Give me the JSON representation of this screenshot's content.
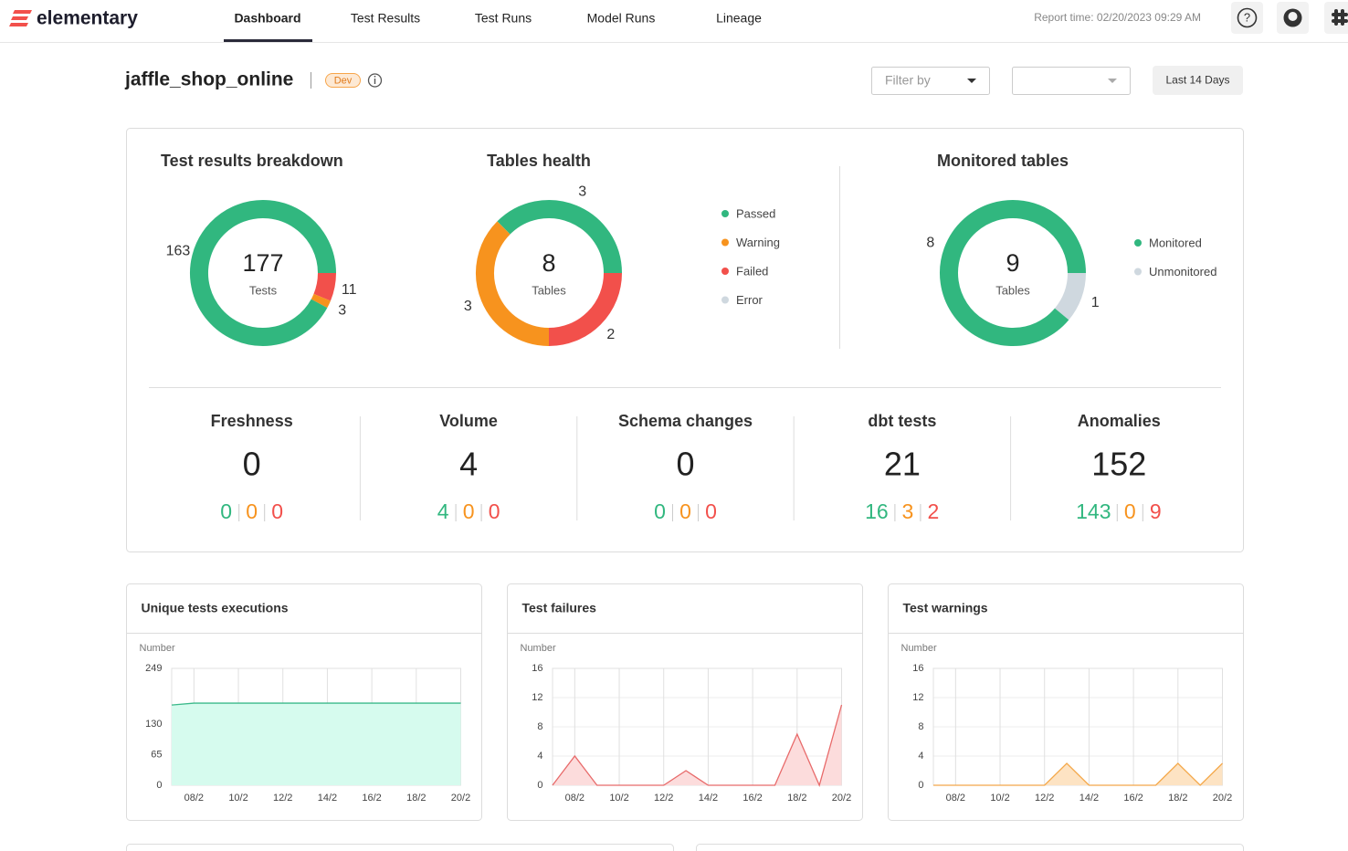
{
  "nav": {
    "brand": "elementary",
    "tabs": [
      "Dashboard",
      "Test Results",
      "Test Runs",
      "Model Runs",
      "Lineage"
    ],
    "report_time": "Report time: 02/20/2023 09:29 AM"
  },
  "header": {
    "title": "jaffle_shop_online",
    "badge": "Dev",
    "filter": "Filter by",
    "range": "Last 14 Days"
  },
  "donuts": [
    {
      "type": "pie",
      "title": "Test results breakdown",
      "total": 177,
      "unit": "Tests",
      "segments": [
        {
          "value": 11,
          "color": "#f2504b"
        },
        {
          "value": 3,
          "color": "#f7931e"
        },
        {
          "value": 163,
          "color": "#31b77f"
        }
      ],
      "legend": []
    },
    {
      "type": "pie",
      "title": "Tables health",
      "total": 8,
      "unit": "Tables",
      "segments": [
        {
          "value": 3,
          "color": "#31b77f"
        },
        {
          "value": 2,
          "color": "#f2504b"
        },
        {
          "value": 3,
          "color": "#f7931e"
        }
      ],
      "legend": [
        {
          "name": "Passed",
          "color": "#31b77f"
        },
        {
          "name": "Warning",
          "color": "#f7931e"
        },
        {
          "name": "Failed",
          "color": "#f2504b"
        },
        {
          "name": "Error",
          "color": "#cfd8df"
        }
      ]
    },
    {
      "type": "pie",
      "title": "Monitored tables",
      "total": 9,
      "unit": "Tables",
      "segments": [
        {
          "value": 1,
          "color": "#cfd8df"
        },
        {
          "value": 8,
          "color": "#31b77f"
        }
      ],
      "legend": [
        {
          "name": "Monitored",
          "color": "#31b77f"
        },
        {
          "name": "Unmonitored",
          "color": "#cfd8df"
        }
      ]
    }
  ],
  "stat_colors": [
    "#31b77f",
    "#f7931e",
    "#f2504b"
  ],
  "stats": [
    {
      "title": "Freshness",
      "total": 0,
      "breakdown": [
        0,
        0,
        0
      ]
    },
    {
      "title": "Volume",
      "total": 4,
      "breakdown": [
        4,
        0,
        0
      ]
    },
    {
      "title": "Schema changes",
      "total": 0,
      "breakdown": [
        0,
        0,
        0
      ]
    },
    {
      "title": "dbt tests",
      "total": 21,
      "breakdown": [
        16,
        3,
        2
      ]
    },
    {
      "title": "Anomalies",
      "total": 152,
      "breakdown": [
        143,
        0,
        9
      ]
    }
  ],
  "charts": [
    {
      "type": "area",
      "title": "Unique tests executions",
      "y_label": "Number",
      "categories": [
        null,
        "08/2",
        null,
        "10/2",
        null,
        "12/2",
        null,
        "14/2",
        null,
        "16/2",
        null,
        "18/2",
        null,
        "20/2"
      ],
      "values": [
        171,
        175,
        175,
        175,
        175,
        175,
        175,
        175,
        175,
        175,
        175,
        175,
        175,
        175
      ],
      "ylim": [
        0,
        249
      ],
      "yticks": [
        0,
        65,
        130,
        249
      ],
      "color": "#3bb98a",
      "fill": "#d6fbee"
    },
    {
      "type": "area",
      "title": "Test failures",
      "y_label": "Number",
      "categories": [
        null,
        "08/2",
        null,
        "10/2",
        null,
        "12/2",
        null,
        "14/2",
        null,
        "16/2",
        null,
        "18/2",
        null,
        "20/2"
      ],
      "values": [
        0,
        4,
        0,
        0,
        0,
        0,
        2,
        0,
        0,
        0,
        0,
        7,
        0,
        11
      ],
      "ylim": [
        0,
        16
      ],
      "yticks": [
        0,
        4,
        8,
        12,
        16
      ],
      "color": "#e86a6a",
      "fill": "#fcdcdc"
    },
    {
      "type": "area",
      "title": "Test warnings",
      "y_label": "Number",
      "categories": [
        null,
        "08/2",
        null,
        "10/2",
        null,
        "12/2",
        null,
        "14/2",
        null,
        "16/2",
        null,
        "18/2",
        null,
        "20/2"
      ],
      "values": [
        0,
        0,
        0,
        0,
        0,
        0,
        3,
        0,
        0,
        0,
        0,
        3,
        0,
        3
      ],
      "ylim": [
        0,
        16
      ],
      "yticks": [
        0,
        4,
        8,
        12,
        16
      ],
      "color": "#f4a84a",
      "fill": "#fde3c3"
    }
  ]
}
